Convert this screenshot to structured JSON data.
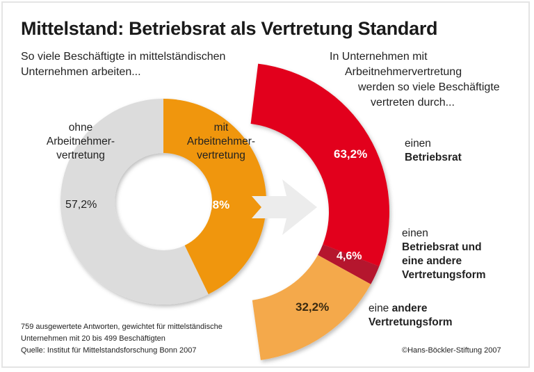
{
  "title": "Mittelstand: Betriebsrat als Vertretung Standard",
  "left_intro": [
    "So viele Beschäftigte in mittelständischen",
    "Unternehmen arbeiten..."
  ],
  "right_intro": [
    "In Unternehmen mit",
    "Arbeitnehmervertretung",
    "werden so viele Beschäftigte",
    "vertreten durch..."
  ],
  "chart_data": [
    {
      "type": "pie",
      "variant": "donut",
      "slices": [
        {
          "label": "mit Arbeitnehmer-vertretung",
          "label_lines": [
            "mit",
            "Arbeitnehmer-",
            "vertretung"
          ],
          "value": 42.8,
          "value_label": "42,8%",
          "color": "#f0960a"
        },
        {
          "label": "ohne Arbeitnehmer-vertretung",
          "label_lines": [
            "ohne",
            "Arbeitnehmer-",
            "vertretung"
          ],
          "value": 57.2,
          "value_label": "57,2%",
          "color": "#dcdcdc"
        }
      ]
    },
    {
      "type": "pie",
      "variant": "half-ring",
      "slices": [
        {
          "label": "einen Betriebsrat",
          "label_lines": [
            "einen",
            "Betriebsrat"
          ],
          "value": 63.2,
          "value_label": "63,2%",
          "color": "#e2001a"
        },
        {
          "label": "einen Betriebsrat und eine andere Vertretungsform",
          "label_lines": [
            "einen",
            "Betriebsrat und",
            "eine andere",
            "Vertretungsform"
          ],
          "value": 4.6,
          "value_label": "4,6%",
          "color": "#b5122e"
        },
        {
          "label": "eine andere Vertretungsform",
          "label_lines": [
            "eine ",
            "andere",
            "Vertretungsform"
          ],
          "value": 32.2,
          "value_label": "32,2%",
          "color": "#f4a94c"
        }
      ]
    }
  ],
  "footnote": [
    "759 ausgewertete Antworten, gewichtet für mittelständische",
    "Unternehmen mit 20 bis 499 Beschäftigten",
    "Quelle: Institut für Mittelstandsforschung Bonn 2007"
  ],
  "copyright": "©Hans-Böckler-Stiftung 2007"
}
